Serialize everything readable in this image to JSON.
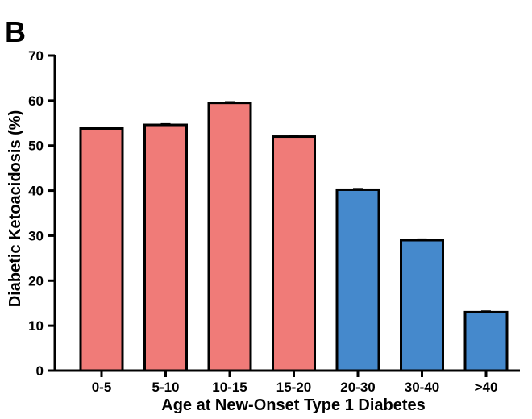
{
  "panel_label": "B",
  "colors": {
    "pediatric": "#f07b78",
    "adult": "#4589cc",
    "outline": "#000000"
  },
  "chart_data": {
    "type": "bar",
    "title": "",
    "xlabel": "Age at New-Onset Type 1 Diabetes",
    "ylabel": "Diabetic Ketoacidosis (%)",
    "ylim": [
      0,
      70
    ],
    "yticks": [
      0,
      10,
      20,
      30,
      40,
      50,
      60,
      70
    ],
    "categories": [
      "0-5",
      "5-10",
      "10-15",
      "15-20",
      "20-30",
      "30-40",
      ">40"
    ],
    "values": [
      53.8,
      54.6,
      59.5,
      52.0,
      40.2,
      29.0,
      13.0
    ],
    "error": [
      0.2,
      0.2,
      0.2,
      0.2,
      0.2,
      0.2,
      0.2
    ],
    "bar_groups": [
      "pediatric",
      "pediatric",
      "pediatric",
      "pediatric",
      "adult",
      "adult",
      "adult"
    ],
    "grid": false,
    "legend": "none"
  }
}
